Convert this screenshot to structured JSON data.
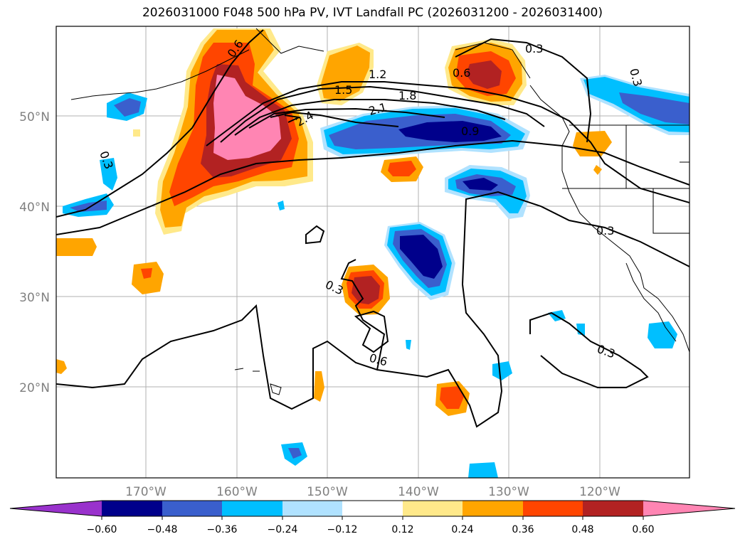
{
  "title": "2026031000 F048 500 hPa PV, IVT Landfall PC (2026031200 - 2026031400)",
  "map": {
    "lat_labels": [
      "50°N",
      "40°N",
      "30°N",
      "20°N"
    ],
    "lon_labels": [
      "170°W",
      "160°W",
      "150°W",
      "140°W",
      "130°W",
      "120°W"
    ],
    "contour_labels": [
      "0.3",
      "0.6",
      "1.2",
      "1.5",
      "1.8",
      "2.1",
      "2.4",
      "0.9",
      "0.6",
      "0.3",
      "0.3",
      "0.3",
      "0.6",
      "0.3",
      "0.3"
    ]
  },
  "colorbar": {
    "tick_labels": [
      "−0.60",
      "−0.48",
      "−0.36",
      "−0.24",
      "−0.12",
      "0.12",
      "0.24",
      "0.36",
      "0.48",
      "0.60"
    ],
    "colors": {
      "under": "#9932cc",
      "c1": "#00008b",
      "c2": "#3a5fcd",
      "c3": "#00bfff",
      "c4": "#b0e2ff",
      "c5": "#ffffff",
      "c6": "#ffe98a",
      "c7": "#ffa500",
      "c8": "#ff4500",
      "c9": "#b22222",
      "over": "#ff85b3"
    }
  }
}
